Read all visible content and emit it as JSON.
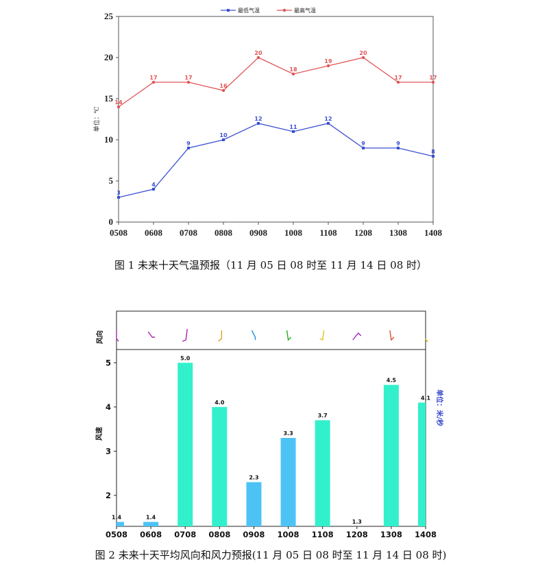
{
  "chart_data": [
    {
      "type": "line",
      "categories": [
        "0508",
        "0608",
        "0708",
        "0808",
        "0908",
        "1008",
        "1108",
        "1208",
        "1308",
        "1408"
      ],
      "series": [
        {
          "name": "最低气温",
          "color": "#3a50d0",
          "values": [
            3,
            4,
            9,
            10,
            12,
            11,
            12,
            9,
            9,
            8
          ]
        },
        {
          "name": "最高气温",
          "color": "#e05555",
          "values": [
            14,
            17,
            17,
            16,
            20,
            18,
            19,
            20,
            17,
            17
          ]
        }
      ],
      "ylabel": "单位：℃",
      "ylim": [
        0,
        25
      ],
      "yticks": [
        0,
        5,
        10,
        15,
        20,
        25
      ],
      "legend": "top-center",
      "caption": "图 1  未来十天气温预报（11 月 05 日 08 时至 11 月 14 日 08 时）"
    },
    {
      "type": "bar",
      "categories": [
        "0508",
        "0608",
        "0708",
        "0808",
        "0908",
        "1008",
        "1108",
        "1208",
        "1308",
        "1408"
      ],
      "values": [
        1.4,
        1.4,
        5.0,
        4.0,
        2.3,
        3.3,
        3.7,
        1.3,
        4.5,
        4.1
      ],
      "value_labels": [
        "1.4",
        "1.4",
        "5.0",
        "4.0",
        "2.3",
        "3.3",
        "3.7",
        "1.3",
        "4.5",
        "4.1"
      ],
      "bar_colors": [
        "#4dc3f5",
        "#4dc3f5",
        "#33f0cc",
        "#33f0cc",
        "#4dc3f5",
        "#4dc3f5",
        "#33f0cc",
        "#4dc3f5",
        "#33f0cc",
        "#33f0cc"
      ],
      "wind_direction_panel_label": "风向",
      "wind_barb_colors": [
        "#b020b0",
        "#b020b0",
        "#b020b0",
        "#e0a020",
        "#2090e0",
        "#20b020",
        "#e0c020",
        "#a020c0",
        "#e05030",
        "#e0c020"
      ],
      "ylabel": "风速",
      "unit_label": "单位：米/秒",
      "ylim": [
        1.3,
        5.3
      ],
      "yticks": [
        2,
        3,
        4,
        5
      ],
      "caption": "图 2  未来十天平均风向和风力预报(11 月 05 日 08 时至 11 月 14 日 08 时)"
    }
  ]
}
